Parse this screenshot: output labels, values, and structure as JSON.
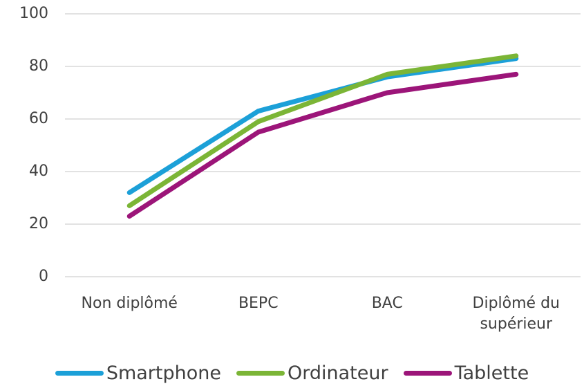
{
  "chart_data": {
    "type": "line",
    "categories": [
      "Non diplômé",
      "BEPC",
      "BAC",
      "Diplômé du supérieur"
    ],
    "series": [
      {
        "name": "Smartphone",
        "color": "#1ca0d8",
        "values": [
          32,
          63,
          76,
          83
        ]
      },
      {
        "name": "Ordinateur",
        "color": "#7bb536",
        "values": [
          27,
          59,
          77,
          84
        ]
      },
      {
        "name": "Tablette",
        "color": "#9c1579",
        "values": [
          23,
          55,
          70,
          77
        ]
      }
    ],
    "ylim": [
      0,
      100
    ],
    "yticks": [
      0,
      20,
      40,
      60,
      80,
      100
    ],
    "grid": true,
    "legend": "bottom"
  }
}
